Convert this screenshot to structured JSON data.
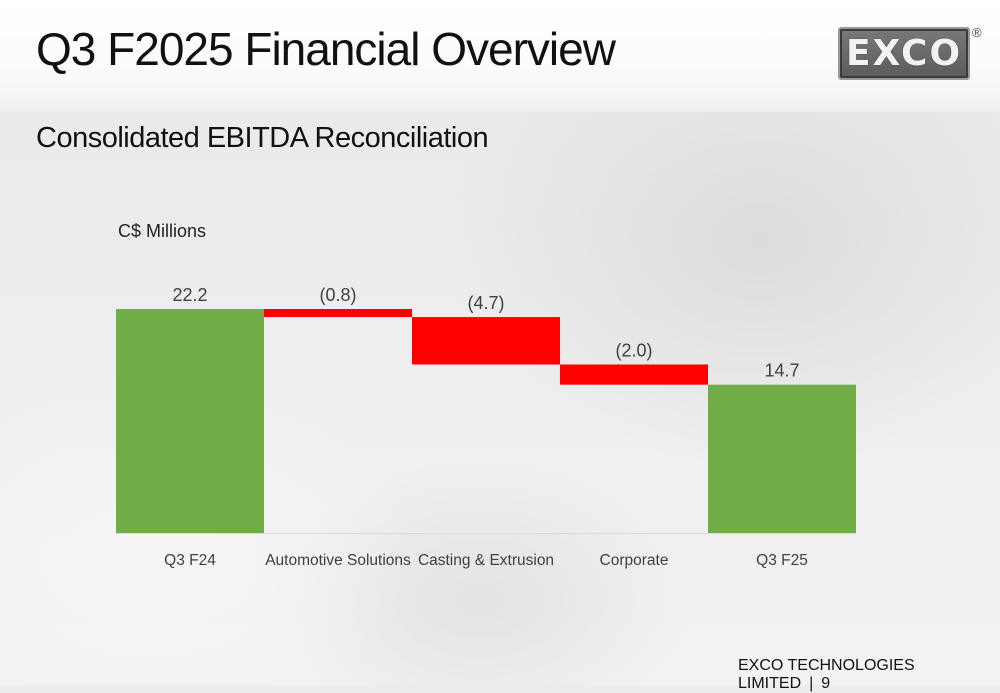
{
  "slide": {
    "title": "Q3 F2025 Financial Overview",
    "subtitle": "Consolidated EBITDA Reconciliation",
    "units_label": "C$ Millions",
    "logo_text": "EXCO",
    "logo_mark": "®",
    "footer_company": "EXCO TECHNOLOGIES LIMITED",
    "footer_separator": "|",
    "page_number": "9"
  },
  "colors": {
    "total_bar": "#70ad47",
    "decrease_bar": "#ff0000",
    "label_text": "#404040",
    "axis_line": "#d9d9d9"
  },
  "chart_data": {
    "type": "bar",
    "subtype": "waterfall",
    "title": "Consolidated EBITDA Reconciliation",
    "ylabel": "C$ Millions",
    "xlabel": "",
    "ylim": [
      0,
      22.2
    ],
    "grid": false,
    "legend": "none",
    "categories": [
      "Q3 F24",
      "Automotive Solutions",
      "Casting & Extrusion",
      "Corporate",
      "Q3 F25"
    ],
    "values": [
      22.2,
      -0.8,
      -4.7,
      -2.0,
      14.7
    ],
    "kinds": [
      "total",
      "delta",
      "delta",
      "delta",
      "total"
    ],
    "data_labels": [
      "22.2",
      "(0.8)",
      "(4.7)",
      "(2.0)",
      "14.7"
    ]
  }
}
